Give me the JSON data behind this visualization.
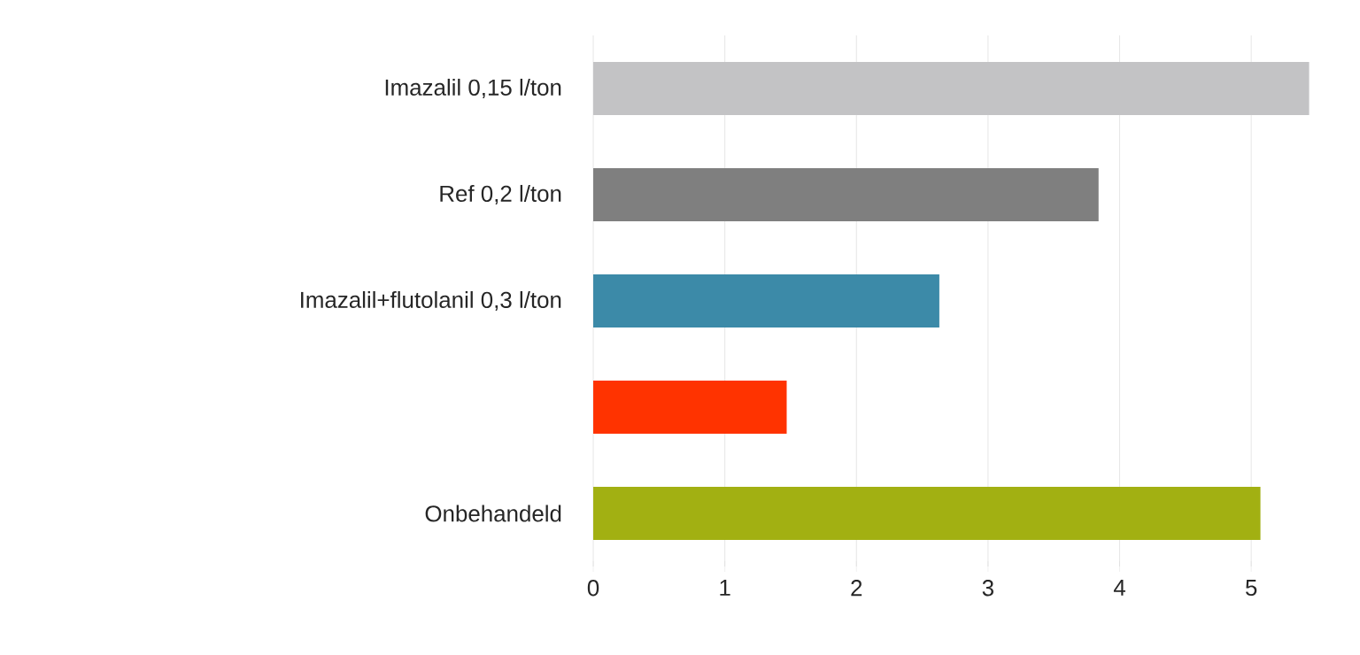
{
  "chart_data": {
    "type": "bar",
    "orientation": "horizontal",
    "categories": [
      "Imazalil 0,15 l/ton",
      "Ref 0,2 l/ton",
      "Imazalil+flutolanil 0,3 l/ton",
      null,
      "Onbehandeld"
    ],
    "values": [
      5.44,
      3.84,
      2.63,
      1.47,
      5.07
    ],
    "colors": [
      "#c3c3c5",
      "#7f7f7f",
      "#3c8aa8",
      "#ff3300",
      "#a2b012"
    ],
    "xlim": [
      0,
      5.45
    ],
    "xticks": [
      0,
      1,
      2,
      3,
      4,
      5
    ],
    "grid": "x"
  }
}
